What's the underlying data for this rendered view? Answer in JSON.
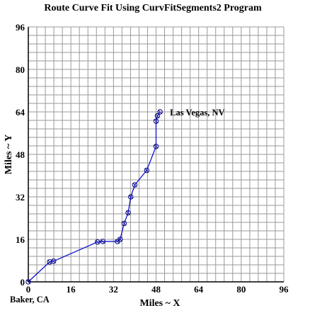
{
  "chart_data": {
    "type": "line",
    "title": "Route Curve Fit Using CurvFitSegments2 Program",
    "xlabel": "Miles ~ X",
    "ylabel": "Miles ~ Y",
    "xlim": [
      0,
      96
    ],
    "ylim": [
      0,
      96
    ],
    "x_major_ticks": [
      0,
      16,
      32,
      48,
      64,
      80,
      96
    ],
    "y_major_ticks": [
      0,
      16,
      32,
      48,
      64,
      80,
      96
    ],
    "x_tick_labels": [
      "0",
      "16",
      "32",
      "48",
      "64",
      "80",
      "96"
    ],
    "y_tick_labels": [
      "0",
      "16",
      "32",
      "48",
      "64",
      "80",
      "96"
    ],
    "minor_step": 3.2,
    "grid": true,
    "colors": {
      "line": "#0000cc",
      "marker": "#000080",
      "grid": "#9a9a9a",
      "text": "#000000"
    },
    "series": [
      {
        "points": [
          [
            0.0,
            0.0
          ],
          [
            8.0,
            7.5
          ],
          [
            9.5,
            7.8
          ],
          [
            26.0,
            15.0
          ],
          [
            28.0,
            15.2
          ],
          [
            33.5,
            15.2
          ],
          [
            34.5,
            16.0
          ],
          [
            36.0,
            22.0
          ],
          [
            37.5,
            26.0
          ],
          [
            38.5,
            32.0
          ],
          [
            40.0,
            36.5
          ],
          [
            44.5,
            42.0
          ],
          [
            48.0,
            51.0
          ],
          [
            48.0,
            60.5
          ],
          [
            48.5,
            62.5
          ],
          [
            49.5,
            64.0
          ]
        ]
      }
    ],
    "annotations": [
      {
        "text": "Las Vegas, NV",
        "x": 49.5,
        "y": 64.0,
        "anchor": "right"
      },
      {
        "text": "Baker, CA",
        "x": 0.0,
        "y": 0.0,
        "anchor": "below"
      }
    ]
  }
}
